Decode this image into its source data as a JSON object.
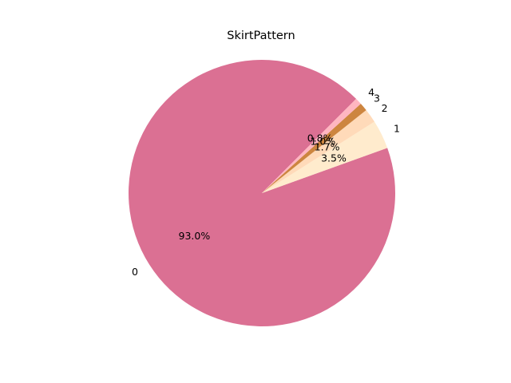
{
  "chart_data": {
    "type": "pie",
    "title": "SkirtPattern",
    "categories": [
      "0",
      "1",
      "2",
      "3",
      "4"
    ],
    "values": [
      93.0,
      3.5,
      1.7,
      1.0,
      0.8
    ],
    "percent_labels": [
      "93.0%",
      "3.5%",
      "1.7%",
      "1.0%",
      "0.8%"
    ],
    "colors": [
      "#db7093",
      "#ffebcd",
      "#ffdab9",
      "#cd853f",
      "#ffb6c1"
    ],
    "start_angle_deg": 45,
    "direction": "counterclockwise"
  }
}
